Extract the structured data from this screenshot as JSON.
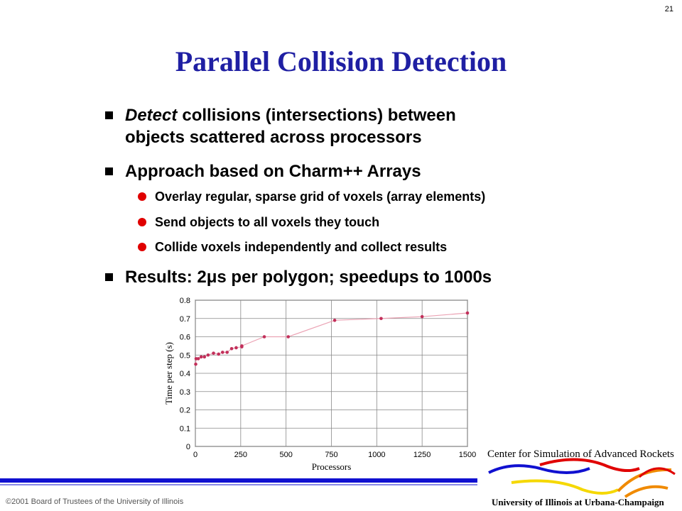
{
  "slide_number": "21",
  "title": "Parallel Collision Detection",
  "bullets": [
    {
      "emphasis": "Detect",
      "lines": [
        "collisions (intersections) between",
        "objects scattered across processors"
      ]
    },
    {
      "text": "Approach based on Charm++ Arrays",
      "sub_bullets": [
        "Overlay regular, sparse grid of voxels (array elements)",
        "Send objects to all voxels they touch",
        "Collide voxels independently and collect results"
      ]
    },
    {
      "text": "Results: 2μs per polygon; speedups to 1000s"
    }
  ],
  "chart_data": {
    "type": "line",
    "xlabel": "Processors",
    "ylabel": "Time per step (s)",
    "x": [
      2,
      4,
      16,
      32,
      50,
      70,
      100,
      128,
      150,
      175,
      200,
      225,
      256,
      256,
      380,
      512,
      768,
      1024,
      1250,
      1500
    ],
    "values": [
      0.45,
      0.48,
      0.48,
      0.49,
      0.49,
      0.5,
      0.51,
      0.505,
      0.515,
      0.515,
      0.535,
      0.54,
      0.545,
      0.55,
      0.6,
      0.6,
      0.69,
      0.7,
      0.71,
      0.73
    ],
    "line_color": "#eba3b4",
    "marker_color": "#c22f5a",
    "xlim": [
      0,
      1500
    ],
    "xticks": [
      0,
      250,
      500,
      750,
      1000,
      1250,
      1500
    ],
    "ylim": [
      0,
      0.8
    ],
    "yticks": [
      0,
      0.1,
      0.2,
      0.3,
      0.4,
      0.5,
      0.6,
      0.7,
      0.8
    ],
    "grid": true
  },
  "logo": {
    "top": "Center for Simulation of Advanced Rockets",
    "bottom": "University of Illinois at Urbana-Champaign"
  },
  "footer": "©2001 Board of Trustees of the University of Illinois"
}
